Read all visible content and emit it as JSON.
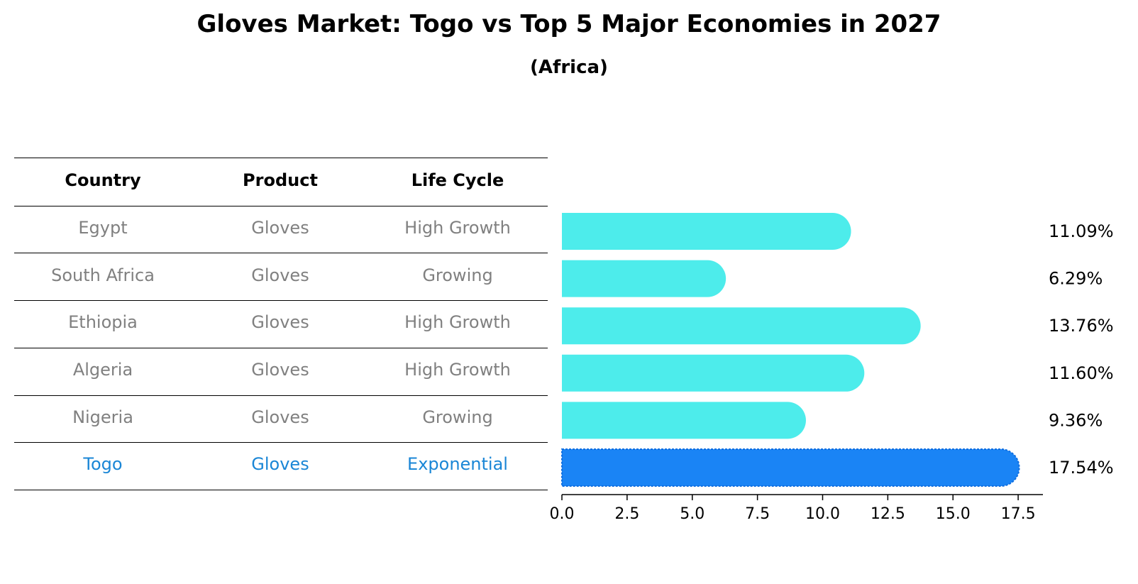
{
  "title": "Gloves Market: Togo vs Top 5 Major Economies in 2027",
  "subtitle": "(Africa)",
  "table": {
    "headers": [
      "Country",
      "Product",
      "Life Cycle"
    ],
    "rows": [
      {
        "country": "Egypt",
        "product": "Gloves",
        "life_cycle": "High Growth"
      },
      {
        "country": "South Africa",
        "product": "Gloves",
        "life_cycle": "Growing"
      },
      {
        "country": "Ethiopia",
        "product": "Gloves",
        "life_cycle": "High Growth"
      },
      {
        "country": "Algeria",
        "product": "Gloves",
        "life_cycle": "High Growth"
      },
      {
        "country": "Nigeria",
        "product": "Gloves",
        "life_cycle": "Growing"
      },
      {
        "country": "Togo",
        "product": "Gloves",
        "life_cycle": "Exponential"
      }
    ]
  },
  "colors": {
    "bar": "#4deceb",
    "highlight_bar": "#1a84f5",
    "highlight_text": "#1a86d6",
    "muted_text": "#808080"
  },
  "chart_data": {
    "type": "bar",
    "orientation": "horizontal",
    "categories": [
      "Egypt",
      "South Africa",
      "Ethiopia",
      "Algeria",
      "Nigeria",
      "Togo"
    ],
    "values": [
      11.09,
      6.29,
      13.76,
      11.6,
      9.36,
      17.54
    ],
    "value_labels": [
      "11.09%",
      "6.29%",
      "13.76%",
      "11.60%",
      "9.36%",
      "17.54%"
    ],
    "highlight": "Togo",
    "xlim": [
      0,
      18.45
    ],
    "xticks": [
      0.0,
      2.5,
      5.0,
      7.5,
      10.0,
      12.5,
      15.0,
      17.5
    ],
    "xtick_labels": [
      "0.0",
      "2.5",
      "5.0",
      "7.5",
      "10.0",
      "12.5",
      "15.0",
      "17.5"
    ],
    "title": "Gloves Market: Togo vs Top 5 Major Economies in 2027",
    "subtitle": "(Africa)",
    "xlabel": "",
    "ylabel": ""
  }
}
